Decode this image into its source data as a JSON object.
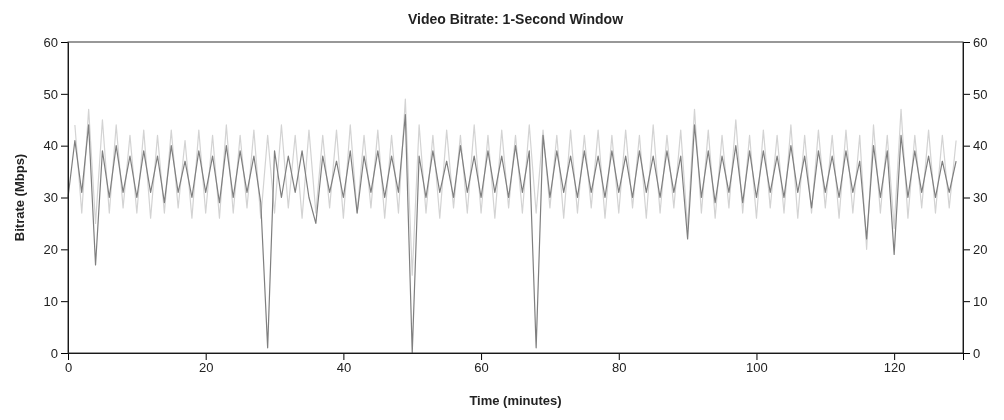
{
  "chart_data": {
    "type": "line",
    "title": "Video Bitrate: 1-Second Window",
    "xlabel": "Time (minutes)",
    "ylabel": "Bitrate (Mbps)",
    "x": [
      0,
      1,
      2,
      3,
      4,
      5,
      6,
      7,
      8,
      9,
      10,
      11,
      12,
      13,
      14,
      15,
      16,
      17,
      18,
      19,
      20,
      21,
      22,
      23,
      24,
      25,
      26,
      27,
      28,
      29,
      30,
      31,
      32,
      33,
      34,
      35,
      36,
      37,
      38,
      39,
      40,
      41,
      42,
      43,
      44,
      45,
      46,
      47,
      48,
      49,
      50,
      51,
      52,
      53,
      54,
      55,
      56,
      57,
      58,
      59,
      60,
      61,
      62,
      63,
      64,
      65,
      66,
      67,
      68,
      69,
      70,
      71,
      72,
      73,
      74,
      75,
      76,
      77,
      78,
      79,
      80,
      81,
      82,
      83,
      84,
      85,
      86,
      87,
      88,
      89,
      90,
      91,
      92,
      93,
      94,
      95,
      96,
      97,
      98,
      99,
      100,
      101,
      102,
      103,
      104,
      105,
      106,
      107,
      108,
      109,
      110,
      111,
      112,
      113,
      114,
      115,
      116,
      117,
      118,
      119,
      120,
      121,
      122,
      123,
      124,
      125,
      126,
      127,
      128,
      129
    ],
    "series": [
      {
        "color": "#d3d3d3",
        "values": [
          null,
          44,
          27,
          47,
          25,
          45,
          27,
          44,
          28,
          42,
          27,
          43,
          26,
          42,
          27,
          43,
          28,
          41,
          26,
          43,
          27,
          42,
          26,
          44,
          27,
          42,
          28,
          43,
          26,
          42,
          27,
          44,
          28,
          42,
          26,
          43,
          27,
          42,
          28,
          43,
          26,
          44,
          27,
          42,
          28,
          43,
          26,
          42,
          27,
          49,
          15,
          44,
          27,
          42,
          26,
          43,
          28,
          42,
          27,
          44,
          27,
          42,
          26,
          43,
          28,
          42,
          27,
          44,
          27,
          43,
          28,
          42,
          26,
          43,
          27,
          42,
          28,
          43,
          26,
          42,
          27,
          43,
          28,
          42,
          26,
          44,
          27,
          42,
          28,
          43,
          24,
          47,
          27,
          43,
          26,
          42,
          28,
          45,
          27,
          42,
          26,
          43,
          28,
          42,
          27,
          44,
          26,
          42,
          27,
          43,
          28,
          42,
          26,
          43,
          27,
          42,
          20,
          44,
          27,
          42,
          24,
          47,
          26,
          42,
          28,
          43,
          27,
          42,
          28,
          41
        ]
      },
      {
        "color": "#7f7f7f",
        "values": [
          30,
          41,
          31,
          44,
          17,
          39,
          30,
          40,
          31,
          38,
          30,
          39,
          31,
          38,
          29,
          40,
          31,
          37,
          30,
          39,
          31,
          38,
          29,
          40,
          30,
          39,
          31,
          38,
          29,
          1,
          39,
          30,
          38,
          31,
          39,
          30,
          25,
          38,
          31,
          37,
          30,
          39,
          27,
          38,
          31,
          39,
          30,
          38,
          31,
          46,
          0,
          38,
          30,
          39,
          31,
          37,
          30,
          40,
          31,
          38,
          30,
          39,
          31,
          38,
          30,
          40,
          31,
          39,
          1,
          42,
          30,
          39,
          31,
          38,
          30,
          39,
          31,
          38,
          30,
          39,
          31,
          38,
          30,
          39,
          31,
          38,
          30,
          39,
          31,
          38,
          22,
          44,
          30,
          39,
          29,
          38,
          31,
          40,
          29,
          39,
          30,
          39,
          31,
          38,
          30,
          40,
          31,
          38,
          28,
          39,
          31,
          38,
          30,
          39,
          31,
          37,
          22,
          40,
          30,
          39,
          19,
          42,
          30,
          39,
          31,
          38,
          30,
          37,
          31,
          37
        ]
      }
    ],
    "xlim": [
      0,
      130
    ],
    "xticks": [
      0,
      20,
      40,
      60,
      80,
      100,
      120
    ],
    "ylim": [
      0,
      60
    ],
    "yticks": [
      0,
      10,
      20,
      30,
      40,
      50,
      60
    ],
    "y2lim": [
      0,
      60
    ],
    "y2ticks": [
      0,
      10,
      20,
      30,
      40,
      50,
      60
    ],
    "grid": false,
    "marker": "none",
    "line_style": "solid"
  }
}
